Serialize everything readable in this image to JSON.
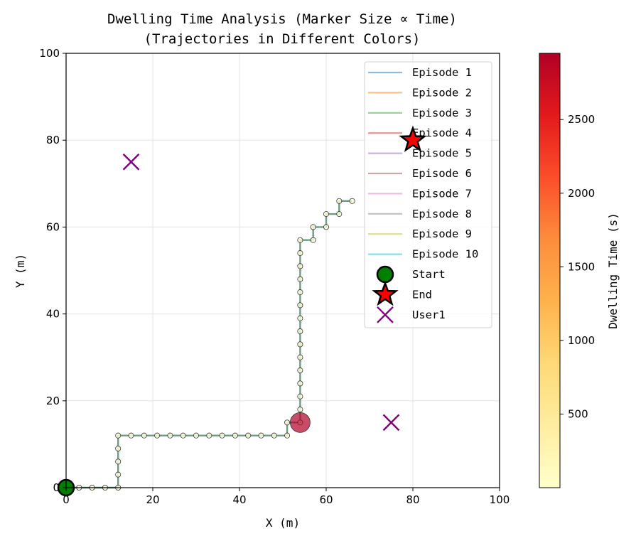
{
  "chart_data": {
    "type": "scatter",
    "title": "Dwelling Time Analysis (Marker Size ∝ Time)",
    "subtitle": "(Trajectories in Different Colors)",
    "xlabel": "X (m)",
    "ylabel": "Y (m)",
    "xlim": [
      0,
      100
    ],
    "ylim": [
      0,
      100
    ],
    "x_ticks": [
      "0",
      "20",
      "40",
      "60",
      "80",
      "100"
    ],
    "y_ticks": [
      "0",
      "20",
      "40",
      "60",
      "80",
      "100"
    ],
    "grid": true,
    "legend_position": "top-right",
    "colorbar": {
      "label": "Dwelling Time (s)",
      "range": [
        0,
        2950
      ],
      "ticks": [
        "500",
        "1000",
        "1500",
        "2000",
        "2500"
      ],
      "tick_values": [
        500,
        1000,
        1500,
        2000,
        2500
      ],
      "colormap": [
        "#ffffcc",
        "#ffeda0",
        "#fed976",
        "#feb24c",
        "#fd8d3c",
        "#fc4e2a",
        "#e31a1c",
        "#b10026"
      ]
    },
    "series": [
      {
        "name": "Episode 1",
        "color": "#1f77b4"
      },
      {
        "name": "Episode 2",
        "color": "#ff7f0e"
      },
      {
        "name": "Episode 3",
        "color": "#2ca02c"
      },
      {
        "name": "Episode 4",
        "color": "#d62728"
      },
      {
        "name": "Episode 5",
        "color": "#9467bd"
      },
      {
        "name": "Episode 6",
        "color": "#8c564b"
      },
      {
        "name": "Episode 7",
        "color": "#e377c2"
      },
      {
        "name": "Episode 8",
        "color": "#7f7f7f"
      },
      {
        "name": "Episode 9",
        "color": "#bcbd22"
      },
      {
        "name": "Episode 10",
        "color": "#17becf"
      }
    ],
    "trajectory": {
      "color": "#6a9e83",
      "points": [
        [
          0,
          0
        ],
        [
          3,
          0
        ],
        [
          6,
          0
        ],
        [
          9,
          0
        ],
        [
          12,
          0
        ],
        [
          12,
          3
        ],
        [
          12,
          6
        ],
        [
          12,
          9
        ],
        [
          12,
          12
        ],
        [
          15,
          12
        ],
        [
          18,
          12
        ],
        [
          21,
          12
        ],
        [
          24,
          12
        ],
        [
          27,
          12
        ],
        [
          30,
          12
        ],
        [
          33,
          12
        ],
        [
          36,
          12
        ],
        [
          39,
          12
        ],
        [
          42,
          12
        ],
        [
          45,
          12
        ],
        [
          48,
          12
        ],
        [
          51,
          12
        ],
        [
          51,
          15
        ],
        [
          54,
          15
        ],
        [
          54,
          18
        ],
        [
          54,
          21
        ],
        [
          54,
          24
        ],
        [
          54,
          27
        ],
        [
          54,
          30
        ],
        [
          54,
          33
        ],
        [
          54,
          36
        ],
        [
          54,
          39
        ],
        [
          54,
          42
        ],
        [
          54,
          45
        ],
        [
          54,
          48
        ],
        [
          54,
          51
        ],
        [
          54,
          54
        ],
        [
          54,
          57
        ],
        [
          57,
          57
        ],
        [
          57,
          60
        ],
        [
          60,
          60
        ],
        [
          60,
          63
        ],
        [
          63,
          63
        ],
        [
          63,
          66
        ],
        [
          66,
          66
        ]
      ]
    },
    "dwell_points": [
      {
        "x": 54,
        "y": 15,
        "time": 2950
      }
    ],
    "start": {
      "label": "Start",
      "x": 0,
      "y": 0,
      "color": "#008000"
    },
    "end": {
      "label": "End",
      "x": 80,
      "y": 80,
      "color": "#ff0000"
    },
    "users": [
      {
        "label": "User1",
        "points": [
          [
            15,
            75
          ],
          [
            75,
            15
          ]
        ],
        "color": "#800080"
      }
    ]
  }
}
